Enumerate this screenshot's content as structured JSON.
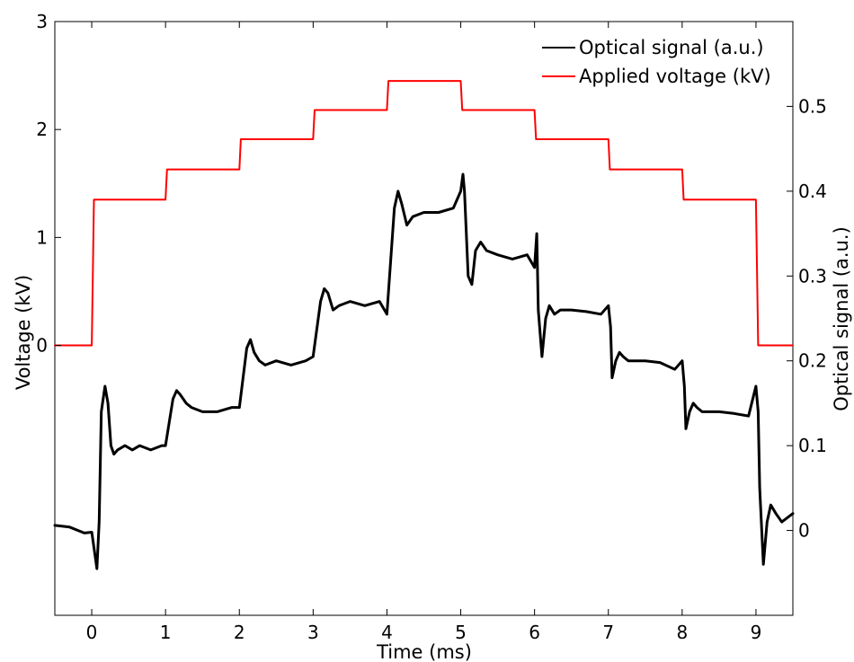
{
  "chart_data": {
    "type": "line",
    "xlabel": "Time (ms)",
    "ylabel_left": "Voltage (kV)",
    "ylabel_right": "Optical signal (a.u.)",
    "xlim": [
      -0.5,
      9.5
    ],
    "ylim_left": [
      -2.5,
      3
    ],
    "ylim_right": [
      -0.1,
      0.6
    ],
    "x_ticks": [
      0,
      1,
      2,
      3,
      4,
      5,
      6,
      7,
      8,
      9
    ],
    "y_left_ticks": [
      0,
      1,
      2,
      3
    ],
    "y_right_ticks": [
      0,
      0.1,
      0.2,
      0.3,
      0.4,
      0.5
    ],
    "x_tick_labels": [
      "0",
      "1",
      "2",
      "3",
      "4",
      "5",
      "6",
      "7",
      "8",
      "9"
    ],
    "y_left_tick_labels": [
      "0",
      "1",
      "2",
      "3"
    ],
    "y_right_tick_labels": [
      "0",
      "0.1",
      "0.2",
      "0.3",
      "0.4",
      "0.5"
    ],
    "grid": false,
    "legend_position": "top-right",
    "series": [
      {
        "name": "Optical signal (a.u.)",
        "axis": "right",
        "color": "#000000",
        "x": [
          -0.5,
          -0.3,
          -0.1,
          0.0,
          0.07,
          0.1,
          0.13,
          0.18,
          0.22,
          0.26,
          0.3,
          0.35,
          0.45,
          0.55,
          0.65,
          0.8,
          0.95,
          1.0,
          1.1,
          1.15,
          1.2,
          1.28,
          1.35,
          1.5,
          1.7,
          1.9,
          2.0,
          2.1,
          2.15,
          2.2,
          2.27,
          2.35,
          2.5,
          2.7,
          2.9,
          3.0,
          3.1,
          3.15,
          3.2,
          3.27,
          3.35,
          3.5,
          3.7,
          3.9,
          4.0,
          4.1,
          4.15,
          4.2,
          4.27,
          4.35,
          4.5,
          4.7,
          4.9,
          5.0,
          5.03,
          5.05,
          5.1,
          5.15,
          5.2,
          5.27,
          5.35,
          5.5,
          5.7,
          5.9,
          6.0,
          6.03,
          6.05,
          6.1,
          6.15,
          6.2,
          6.27,
          6.35,
          6.5,
          6.7,
          6.9,
          7.0,
          7.03,
          7.05,
          7.1,
          7.15,
          7.2,
          7.27,
          7.35,
          7.5,
          7.7,
          7.9,
          8.0,
          8.03,
          8.05,
          8.1,
          8.15,
          8.2,
          8.27,
          8.35,
          8.5,
          8.7,
          8.9,
          9.0,
          9.03,
          9.05,
          9.1,
          9.15,
          9.2,
          9.27,
          9.35,
          9.5
        ],
        "y": [
          0.006,
          0.004,
          -0.003,
          -0.002,
          -0.045,
          0.01,
          0.14,
          0.17,
          0.15,
          0.1,
          0.09,
          0.095,
          0.1,
          0.095,
          0.1,
          0.095,
          0.1,
          0.1,
          0.155,
          0.165,
          0.16,
          0.15,
          0.145,
          0.14,
          0.14,
          0.145,
          0.145,
          0.215,
          0.225,
          0.21,
          0.2,
          0.195,
          0.2,
          0.195,
          0.2,
          0.205,
          0.27,
          0.285,
          0.28,
          0.26,
          0.265,
          0.27,
          0.265,
          0.27,
          0.255,
          0.38,
          0.4,
          0.385,
          0.36,
          0.37,
          0.375,
          0.375,
          0.38,
          0.4,
          0.42,
          0.4,
          0.3,
          0.29,
          0.33,
          0.34,
          0.33,
          0.325,
          0.32,
          0.325,
          0.31,
          0.35,
          0.26,
          0.205,
          0.25,
          0.265,
          0.255,
          0.26,
          0.26,
          0.258,
          0.255,
          0.265,
          0.24,
          0.18,
          0.2,
          0.21,
          0.205,
          0.2,
          0.2,
          0.2,
          0.198,
          0.19,
          0.2,
          0.17,
          0.12,
          0.14,
          0.15,
          0.145,
          0.14,
          0.14,
          0.14,
          0.138,
          0.135,
          0.17,
          0.14,
          0.05,
          -0.04,
          0.01,
          0.03,
          0.02,
          0.01,
          0.02
        ]
      },
      {
        "name": "Applied voltage (kV)",
        "axis": "left",
        "color": "#ff0000",
        "x": [
          -0.5,
          0.0,
          0.03,
          1.0,
          1.02,
          2.0,
          2.02,
          3.0,
          3.02,
          4.0,
          4.02,
          5.0,
          5.02,
          6.0,
          6.02,
          7.0,
          7.02,
          8.0,
          8.02,
          9.0,
          9.03,
          9.5
        ],
        "y": [
          0.0,
          0.0,
          1.35,
          1.35,
          1.63,
          1.63,
          1.91,
          1.91,
          2.18,
          2.18,
          2.45,
          2.45,
          2.18,
          2.18,
          1.91,
          1.91,
          1.63,
          1.63,
          1.35,
          1.35,
          0.0,
          0.0
        ]
      }
    ]
  }
}
